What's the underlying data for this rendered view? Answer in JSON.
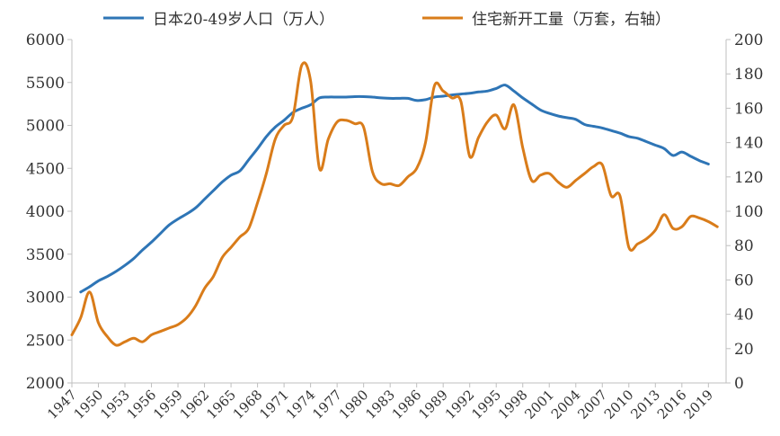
{
  "chart_data": {
    "type": "line",
    "legend_position": "top",
    "grid": false,
    "x_ticks": [
      "1947",
      "1950",
      "1953",
      "1956",
      "1959",
      "1962",
      "1965",
      "1968",
      "1971",
      "1974",
      "1977",
      "1980",
      "1983",
      "1986",
      "1989",
      "1992",
      "1995",
      "1998",
      "2001",
      "2004",
      "2007",
      "2010",
      "2013",
      "2016",
      "2019"
    ],
    "y_left": {
      "min": 2000,
      "max": 6000,
      "ticks": [
        "2000",
        "2500",
        "3000",
        "3500",
        "4000",
        "4500",
        "5000",
        "5500",
        "6000"
      ]
    },
    "y_right": {
      "min": 0,
      "max": 200,
      "ticks": [
        "0",
        "20",
        "40",
        "60",
        "80",
        "100",
        "120",
        "140",
        "160",
        "180",
        "200"
      ]
    },
    "series": [
      {
        "name": "日本20-49岁人口（万人）",
        "axis": "left",
        "color": "#2e75b6",
        "points": [
          [
            1948,
            3060
          ],
          [
            1949,
            3120
          ],
          [
            1950,
            3190
          ],
          [
            1951,
            3240
          ],
          [
            1952,
            3300
          ],
          [
            1953,
            3370
          ],
          [
            1954,
            3450
          ],
          [
            1955,
            3550
          ],
          [
            1956,
            3640
          ],
          [
            1957,
            3740
          ],
          [
            1958,
            3840
          ],
          [
            1959,
            3910
          ],
          [
            1960,
            3970
          ],
          [
            1961,
            4040
          ],
          [
            1962,
            4140
          ],
          [
            1963,
            4240
          ],
          [
            1964,
            4340
          ],
          [
            1965,
            4420
          ],
          [
            1966,
            4470
          ],
          [
            1967,
            4600
          ],
          [
            1968,
            4730
          ],
          [
            1969,
            4870
          ],
          [
            1970,
            4980
          ],
          [
            1971,
            5060
          ],
          [
            1972,
            5150
          ],
          [
            1973,
            5200
          ],
          [
            1974,
            5240
          ],
          [
            1975,
            5320
          ],
          [
            1976,
            5330
          ],
          [
            1977,
            5330
          ],
          [
            1978,
            5330
          ],
          [
            1979,
            5335
          ],
          [
            1980,
            5335
          ],
          [
            1981,
            5330
          ],
          [
            1982,
            5320
          ],
          [
            1983,
            5315
          ],
          [
            1984,
            5315
          ],
          [
            1985,
            5315
          ],
          [
            1986,
            5290
          ],
          [
            1987,
            5300
          ],
          [
            1988,
            5330
          ],
          [
            1989,
            5340
          ],
          [
            1990,
            5355
          ],
          [
            1991,
            5365
          ],
          [
            1992,
            5375
          ],
          [
            1993,
            5390
          ],
          [
            1994,
            5400
          ],
          [
            1995,
            5430
          ],
          [
            1996,
            5470
          ],
          [
            1997,
            5400
          ],
          [
            1998,
            5320
          ],
          [
            1999,
            5250
          ],
          [
            2000,
            5180
          ],
          [
            2001,
            5140
          ],
          [
            2002,
            5110
          ],
          [
            2003,
            5090
          ],
          [
            2004,
            5070
          ],
          [
            2005,
            5010
          ],
          [
            2006,
            4990
          ],
          [
            2007,
            4970
          ],
          [
            2008,
            4940
          ],
          [
            2009,
            4910
          ],
          [
            2010,
            4870
          ],
          [
            2011,
            4850
          ],
          [
            2012,
            4810
          ],
          [
            2013,
            4770
          ],
          [
            2014,
            4730
          ],
          [
            2015,
            4650
          ],
          [
            2016,
            4690
          ],
          [
            2017,
            4640
          ],
          [
            2018,
            4590
          ],
          [
            2019,
            4550
          ]
        ]
      },
      {
        "name": "住宅新开工量（万套，右轴）",
        "axis": "right",
        "color": "#d97c1a",
        "points": [
          [
            1947,
            28
          ],
          [
            1948,
            38
          ],
          [
            1949,
            53
          ],
          [
            1950,
            35
          ],
          [
            1951,
            27
          ],
          [
            1952,
            22
          ],
          [
            1953,
            24
          ],
          [
            1954,
            26
          ],
          [
            1955,
            24
          ],
          [
            1956,
            28
          ],
          [
            1957,
            30
          ],
          [
            1958,
            32
          ],
          [
            1959,
            34
          ],
          [
            1960,
            38
          ],
          [
            1961,
            45
          ],
          [
            1962,
            55
          ],
          [
            1963,
            62
          ],
          [
            1964,
            73
          ],
          [
            1965,
            79
          ],
          [
            1966,
            85
          ],
          [
            1967,
            90
          ],
          [
            1968,
            105
          ],
          [
            1969,
            122
          ],
          [
            1970,
            142
          ],
          [
            1971,
            150
          ],
          [
            1972,
            155
          ],
          [
            1973,
            185
          ],
          [
            1974,
            176
          ],
          [
            1975,
            125
          ],
          [
            1976,
            142
          ],
          [
            1977,
            152
          ],
          [
            1978,
            153
          ],
          [
            1979,
            151
          ],
          [
            1980,
            149
          ],
          [
            1981,
            123
          ],
          [
            1982,
            116
          ],
          [
            1983,
            116
          ],
          [
            1984,
            115
          ],
          [
            1985,
            120
          ],
          [
            1986,
            125
          ],
          [
            1987,
            140
          ],
          [
            1988,
            173
          ],
          [
            1989,
            170
          ],
          [
            1990,
            166
          ],
          [
            1991,
            164
          ],
          [
            1992,
            132
          ],
          [
            1993,
            143
          ],
          [
            1994,
            152
          ],
          [
            1995,
            156
          ],
          [
            1996,
            148
          ],
          [
            1997,
            162
          ],
          [
            1998,
            137
          ],
          [
            1999,
            118
          ],
          [
            2000,
            121
          ],
          [
            2001,
            122
          ],
          [
            2002,
            117
          ],
          [
            2003,
            114
          ],
          [
            2004,
            118
          ],
          [
            2005,
            122
          ],
          [
            2006,
            126
          ],
          [
            2007,
            127
          ],
          [
            2008,
            109
          ],
          [
            2009,
            109
          ],
          [
            2010,
            79
          ],
          [
            2011,
            81
          ],
          [
            2012,
            84
          ],
          [
            2013,
            89
          ],
          [
            2014,
            98
          ],
          [
            2015,
            90
          ],
          [
            2016,
            91
          ],
          [
            2017,
            97
          ],
          [
            2018,
            96
          ],
          [
            2019,
            94
          ],
          [
            2020,
            91
          ]
        ]
      }
    ]
  }
}
